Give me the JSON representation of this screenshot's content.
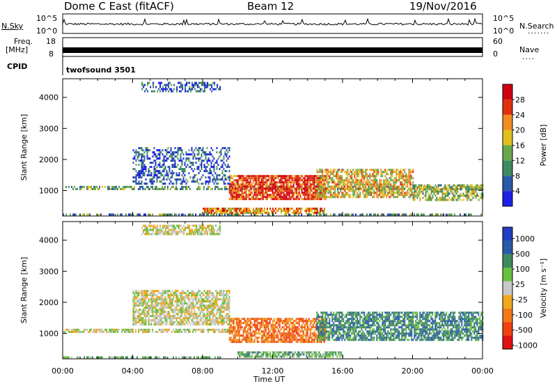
{
  "header": {
    "station": "Dome C East (fitACF)",
    "beam": "Beam 12",
    "date": "19/Nov/2016"
  },
  "strip_labels": {
    "nsky": "N.Sky",
    "nsky_ticks": [
      "10^5",
      "10^0"
    ],
    "nsearch": "N.Search",
    "nsearch_ticks": [
      "10^5",
      "10^0"
    ],
    "freq_top": "Freq.",
    "freq_unit": "[MHz]",
    "freq_ticks": [
      "18",
      "8"
    ],
    "nave": "Nave",
    "nave_ticks": [
      "60",
      "0"
    ],
    "cpid": "CPID",
    "cpid_value": "twofsound 3501"
  },
  "x_axis": {
    "title": "Time UT",
    "ticks": [
      "00:00",
      "04:00",
      "08:00",
      "12:00",
      "16:00",
      "20:00",
      "00:00"
    ]
  },
  "colors": {
    "power_scale": [
      "#1f1fe6",
      "#2a5aa8",
      "#3f8a5e",
      "#6aa84f",
      "#e0c020",
      "#f08c20",
      "#e03010",
      "#d00010"
    ],
    "velocity_scale": [
      "#e01010",
      "#f04010",
      "#f07818",
      "#f0a820",
      "#c8c8c8",
      "#6ac040",
      "#3f8a5e",
      "#2a5aa8",
      "#2040c0"
    ]
  },
  "chart_data": [
    {
      "type": "heatmap",
      "name": "power",
      "ylabel": "Slant Range [km]",
      "ylim": [
        180,
        4600
      ],
      "yticks": [
        "1000",
        "2000",
        "3000",
        "4000"
      ],
      "ytick_values": [
        1000,
        2000,
        3000,
        4000
      ],
      "xlim_hours": [
        0,
        24
      ],
      "colorbar_label": "Power [dB]",
      "colorbar_ticks": [
        "4",
        "8",
        "12",
        "16",
        "20",
        "24",
        "28"
      ],
      "clusters": [
        {
          "t0": 0.0,
          "t1": 24.0,
          "r0": 1050,
          "r1": 1150,
          "level": 0.35
        },
        {
          "t0": 9.5,
          "t1": 15.0,
          "r0": 700,
          "r1": 1500,
          "level": 0.85
        },
        {
          "t0": 14.5,
          "t1": 20.0,
          "r0": 800,
          "r1": 1700,
          "level": 0.6
        },
        {
          "t0": 20.0,
          "t1": 24.0,
          "r0": 700,
          "r1": 1200,
          "level": 0.45
        },
        {
          "t0": 8.0,
          "t1": 15.0,
          "r0": 280,
          "r1": 450,
          "level": 0.7
        },
        {
          "t0": 0.0,
          "t1": 24.0,
          "r0": 200,
          "r1": 260,
          "level": 0.3
        },
        {
          "t0": 4.0,
          "t1": 9.5,
          "r0": 1200,
          "r1": 2400,
          "level": 0.15
        },
        {
          "t0": 4.5,
          "t1": 9.0,
          "r0": 4200,
          "r1": 4500,
          "level": 0.15
        }
      ]
    },
    {
      "type": "heatmap",
      "name": "velocity",
      "ylabel": "Slant Range [km]",
      "ylim": [
        180,
        4600
      ],
      "yticks": [
        "1000",
        "2000",
        "3000",
        "4000"
      ],
      "ytick_values": [
        1000,
        2000,
        3000,
        4000
      ],
      "xlim_hours": [
        0,
        24
      ],
      "colorbar_label": "Velocity [m s⁻¹]",
      "colorbar_ticks": [
        "1000",
        "500",
        "100",
        "25",
        "-25",
        "-100",
        "-500",
        "-1000"
      ],
      "clusters": [
        {
          "t0": 0.0,
          "t1": 9.5,
          "r0": 1050,
          "r1": 1150,
          "vel": 0.0
        },
        {
          "t0": 9.5,
          "t1": 15.0,
          "r0": 700,
          "r1": 1500,
          "vel": -0.55
        },
        {
          "t0": 14.5,
          "t1": 24.0,
          "r0": 800,
          "r1": 1700,
          "vel": 0.55
        },
        {
          "t0": 10.0,
          "t1": 16.0,
          "r0": 280,
          "r1": 420,
          "vel": 0.35
        },
        {
          "t0": 0.0,
          "t1": 9.0,
          "r0": 200,
          "r1": 260,
          "vel": 0.3
        },
        {
          "t0": 4.0,
          "t1": 9.5,
          "r0": 1300,
          "r1": 2400,
          "vel": 0.0
        },
        {
          "t0": 4.5,
          "t1": 9.0,
          "r0": 4200,
          "r1": 4500,
          "vel": 0.0
        }
      ]
    }
  ]
}
